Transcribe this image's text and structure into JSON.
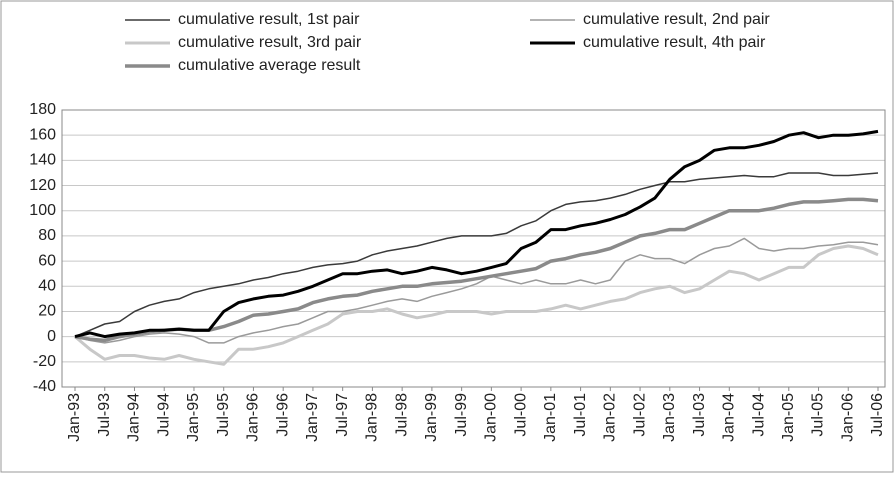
{
  "chart_data": {
    "type": "line",
    "categories": [
      "Jan-93",
      null,
      "Jul-93",
      null,
      "Jan-94",
      null,
      "Jul-94",
      null,
      "Jan-95",
      null,
      "Jul-95",
      null,
      "Jan-96",
      null,
      "Jul-96",
      null,
      "Jan-97",
      null,
      "Jul-97",
      null,
      "Jan-98",
      null,
      "Jul-98",
      null,
      "Jan-99",
      null,
      "Jul-99",
      null,
      "Jan-00",
      null,
      "Jul-00",
      null,
      "Jan-01",
      null,
      "Jul-01",
      null,
      "Jan-02",
      null,
      "Jul-02",
      null,
      "Jan-03",
      null,
      "Jul-03",
      null,
      "Jan-04",
      null,
      "Jul-04",
      null,
      "Jan-05",
      null,
      "Jul-05",
      null,
      "Jan-06",
      null,
      "Jul-06"
    ],
    "series": [
      {
        "name": "cumulative result, 1st pair",
        "color": "#3a3a3a",
        "line_width": 1.5,
        "values": [
          0,
          5,
          10,
          12,
          20,
          25,
          28,
          30,
          35,
          38,
          40,
          42,
          45,
          47,
          50,
          52,
          55,
          57,
          58,
          60,
          65,
          68,
          70,
          72,
          75,
          78,
          80,
          80,
          80,
          82,
          88,
          92,
          100,
          105,
          107,
          108,
          110,
          113,
          117,
          120,
          123,
          123,
          125,
          126,
          127,
          128,
          127,
          127,
          130,
          130,
          130,
          128,
          128,
          129,
          130
        ]
      },
      {
        "name": "cumulative result, 2nd pair",
        "color": "#9a9a9a",
        "line_width": 1.5,
        "values": [
          0,
          -3,
          -5,
          -3,
          0,
          2,
          3,
          2,
          0,
          -5,
          -5,
          0,
          3,
          5,
          8,
          10,
          15,
          20,
          20,
          22,
          25,
          28,
          30,
          28,
          32,
          35,
          38,
          42,
          48,
          45,
          42,
          45,
          42,
          42,
          45,
          42,
          45,
          60,
          65,
          62,
          62,
          58,
          65,
          70,
          72,
          78,
          70,
          68,
          70,
          70,
          72,
          73,
          75,
          75,
          73
        ]
      },
      {
        "name": "cumulative result, 3rd pair",
        "color": "#c8c8c8",
        "line_width": 3,
        "values": [
          0,
          -10,
          -18,
          -15,
          -15,
          -17,
          -18,
          -15,
          -18,
          -20,
          -22,
          -10,
          -10,
          -8,
          -5,
          0,
          5,
          10,
          18,
          20,
          20,
          22,
          18,
          15,
          17,
          20,
          20,
          20,
          18,
          20,
          20,
          20,
          22,
          25,
          22,
          25,
          28,
          30,
          35,
          38,
          40,
          35,
          38,
          45,
          52,
          50,
          45,
          50,
          55,
          55,
          65,
          70,
          72,
          70,
          65
        ]
      },
      {
        "name": "cumulative result, 4th pair",
        "color": "#000000",
        "line_width": 3,
        "values": [
          0,
          3,
          0,
          2,
          3,
          5,
          5,
          6,
          5,
          5,
          20,
          27,
          30,
          32,
          33,
          36,
          40,
          45,
          50,
          50,
          52,
          53,
          50,
          52,
          55,
          53,
          50,
          52,
          55,
          58,
          70,
          75,
          85,
          85,
          88,
          90,
          93,
          97,
          103,
          110,
          125,
          135,
          140,
          148,
          150,
          150,
          152,
          155,
          160,
          162,
          158,
          160,
          160,
          161,
          163
        ]
      },
      {
        "name": "cumulative average result",
        "color": "#8a8a8a",
        "line_width": 3.5,
        "values": [
          0,
          -2,
          -3,
          0,
          2,
          4,
          5,
          6,
          5,
          5,
          8,
          12,
          17,
          18,
          20,
          22,
          27,
          30,
          32,
          33,
          36,
          38,
          40,
          40,
          42,
          43,
          44,
          46,
          48,
          50,
          52,
          54,
          60,
          62,
          65,
          67,
          70,
          75,
          80,
          82,
          85,
          85,
          90,
          95,
          100,
          100,
          100,
          102,
          105,
          107,
          107,
          108,
          109,
          109,
          108
        ]
      }
    ],
    "ylim": [
      -40,
      180
    ],
    "yticks": [
      -40,
      -20,
      0,
      20,
      40,
      60,
      80,
      100,
      120,
      140,
      160,
      180
    ],
    "grid": true
  }
}
